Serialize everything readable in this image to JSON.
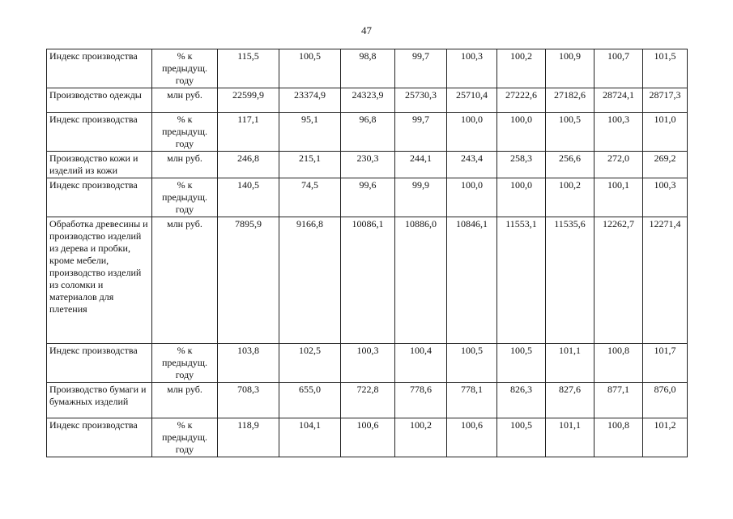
{
  "page": {
    "number": "47"
  },
  "table": {
    "rows": [
      {
        "label": "Индекс производства",
        "unit": "% к предыдущ. году",
        "values": [
          "115,5",
          "100,5",
          "98,8",
          "99,7",
          "100,3",
          "100,2",
          "100,9",
          "100,7",
          "101,5"
        ]
      },
      {
        "label": "Производство одежды",
        "unit": "млн руб.",
        "values": [
          "22599,9",
          "23374,9",
          "24323,9",
          "25730,3",
          "25710,4",
          "27222,6",
          "27182,6",
          "28724,1",
          "28717,3"
        ]
      },
      {
        "label": "Индекс производства",
        "unit": "% к предыдущ. году",
        "values": [
          "117,1",
          "95,1",
          "96,8",
          "99,7",
          "100,0",
          "100,0",
          "100,5",
          "100,3",
          "101,0"
        ]
      },
      {
        "label": "Производство кожи и изделий из кожи",
        "unit": "млн руб.",
        "values": [
          "246,8",
          "215,1",
          "230,3",
          "244,1",
          "243,4",
          "258,3",
          "256,6",
          "272,0",
          "269,2"
        ]
      },
      {
        "label": "Индекс производства",
        "unit": "% к предыдущ. году",
        "values": [
          "140,5",
          "74,5",
          "99,6",
          "99,9",
          "100,0",
          "100,0",
          "100,2",
          "100,1",
          "100,3"
        ]
      },
      {
        "label": "Обработка древесины и производство изделий из дерева и пробки, кроме мебели, производство изделий из соломки и материалов для плетения",
        "unit": "млн руб.",
        "values": [
          "7895,9",
          "9166,8",
          "10086,1",
          "10886,0",
          "10846,1",
          "11553,1",
          "11535,6",
          "12262,7",
          "12271,4"
        ]
      },
      {
        "label": "Индекс производства",
        "unit": "% к предыдущ. году",
        "values": [
          "103,8",
          "102,5",
          "100,3",
          "100,4",
          "100,5",
          "100,5",
          "101,1",
          "100,8",
          "101,7"
        ]
      },
      {
        "label": "Производство бумаги и бумажных изделий",
        "unit": "млн руб.",
        "values": [
          "708,3",
          "655,0",
          "722,8",
          "778,6",
          "778,1",
          "826,3",
          "827,6",
          "877,1",
          "876,0"
        ]
      },
      {
        "label": "Индекс производства",
        "unit": "% к предыдущ. году",
        "values": [
          "118,9",
          "104,1",
          "100,6",
          "100,2",
          "100,6",
          "100,5",
          "101,1",
          "100,8",
          "101,2"
        ]
      }
    ]
  }
}
